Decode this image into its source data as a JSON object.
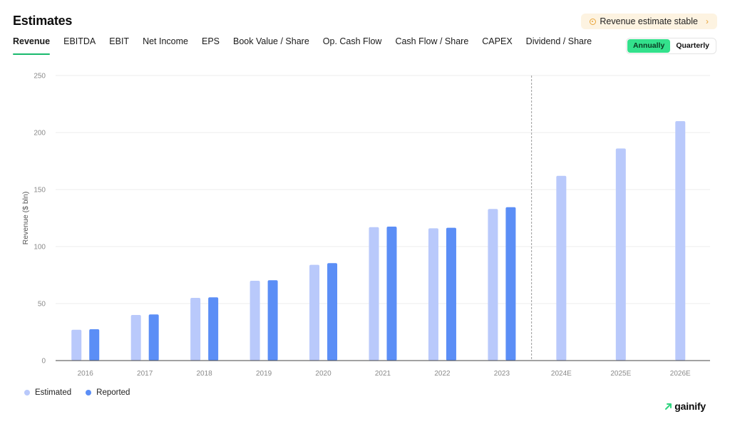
{
  "header": {
    "title": "Estimates",
    "badge_label": "Revenue estimate stable",
    "badge_chevron": "›"
  },
  "tabs": [
    {
      "label": "Revenue",
      "active": true
    },
    {
      "label": "EBITDA"
    },
    {
      "label": "EBIT"
    },
    {
      "label": "Net Income"
    },
    {
      "label": "EPS"
    },
    {
      "label": "Book Value / Share"
    },
    {
      "label": "Op. Cash Flow"
    },
    {
      "label": "Cash Flow / Share"
    },
    {
      "label": "CAPEX"
    },
    {
      "label": "Dividend / Share"
    }
  ],
  "period_toggle": {
    "annually_label": "Annually",
    "quarterly_label": "Quarterly",
    "selected": "Annually"
  },
  "colors": {
    "estimated": "#b9c9fb",
    "reported": "#5b8ef6",
    "active_tab_underline": "#19b96d",
    "toggle_on": "#33e18c",
    "badge_bg": "#fdf3e1",
    "badge_icon": "#e9a53a"
  },
  "chart_data": {
    "type": "bar",
    "ylabel": "Revenue ($ bln)",
    "ylim": [
      0,
      250
    ],
    "yticks": [
      0,
      50,
      100,
      150,
      200,
      250
    ],
    "categories": [
      "2016",
      "2017",
      "2018",
      "2019",
      "2020",
      "2021",
      "2022",
      "2023",
      "2024E",
      "2025E",
      "2026E"
    ],
    "series": [
      {
        "name": "Estimated",
        "values": [
          27,
          40,
          55,
          70,
          84,
          117,
          116,
          133,
          162,
          186,
          210
        ]
      },
      {
        "name": "Reported",
        "values": [
          27.5,
          40.5,
          55.5,
          70.5,
          85.5,
          117.5,
          116.5,
          134.5,
          null,
          null,
          null
        ]
      }
    ],
    "forecast_divider_after": "2023",
    "grid": true,
    "legend_position": "bottom-left"
  },
  "brand": {
    "name": "gainify",
    "icon": "arrow-up-right-icon"
  }
}
